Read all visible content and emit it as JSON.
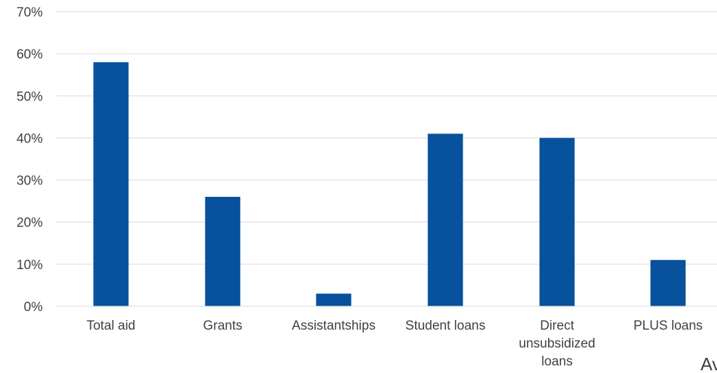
{
  "chart_data": {
    "type": "bar",
    "categories": [
      [
        "Total aid"
      ],
      [
        "Grants"
      ],
      [
        "Assistantships"
      ],
      [
        "Student loans"
      ],
      [
        "Direct",
        "unsubsidized",
        "loans"
      ],
      [
        "PLUS loans"
      ]
    ],
    "values": [
      58,
      26,
      3,
      41,
      40,
      11
    ],
    "ylim": [
      0,
      70
    ],
    "yticks": [
      0,
      10,
      20,
      30,
      40,
      50,
      60,
      70
    ],
    "ytick_suffix": "%",
    "grid": true,
    "bar_color": "#08519c",
    "grid_color": "#d9d9d9",
    "text_color": "#404040"
  },
  "edge_text": "Av"
}
